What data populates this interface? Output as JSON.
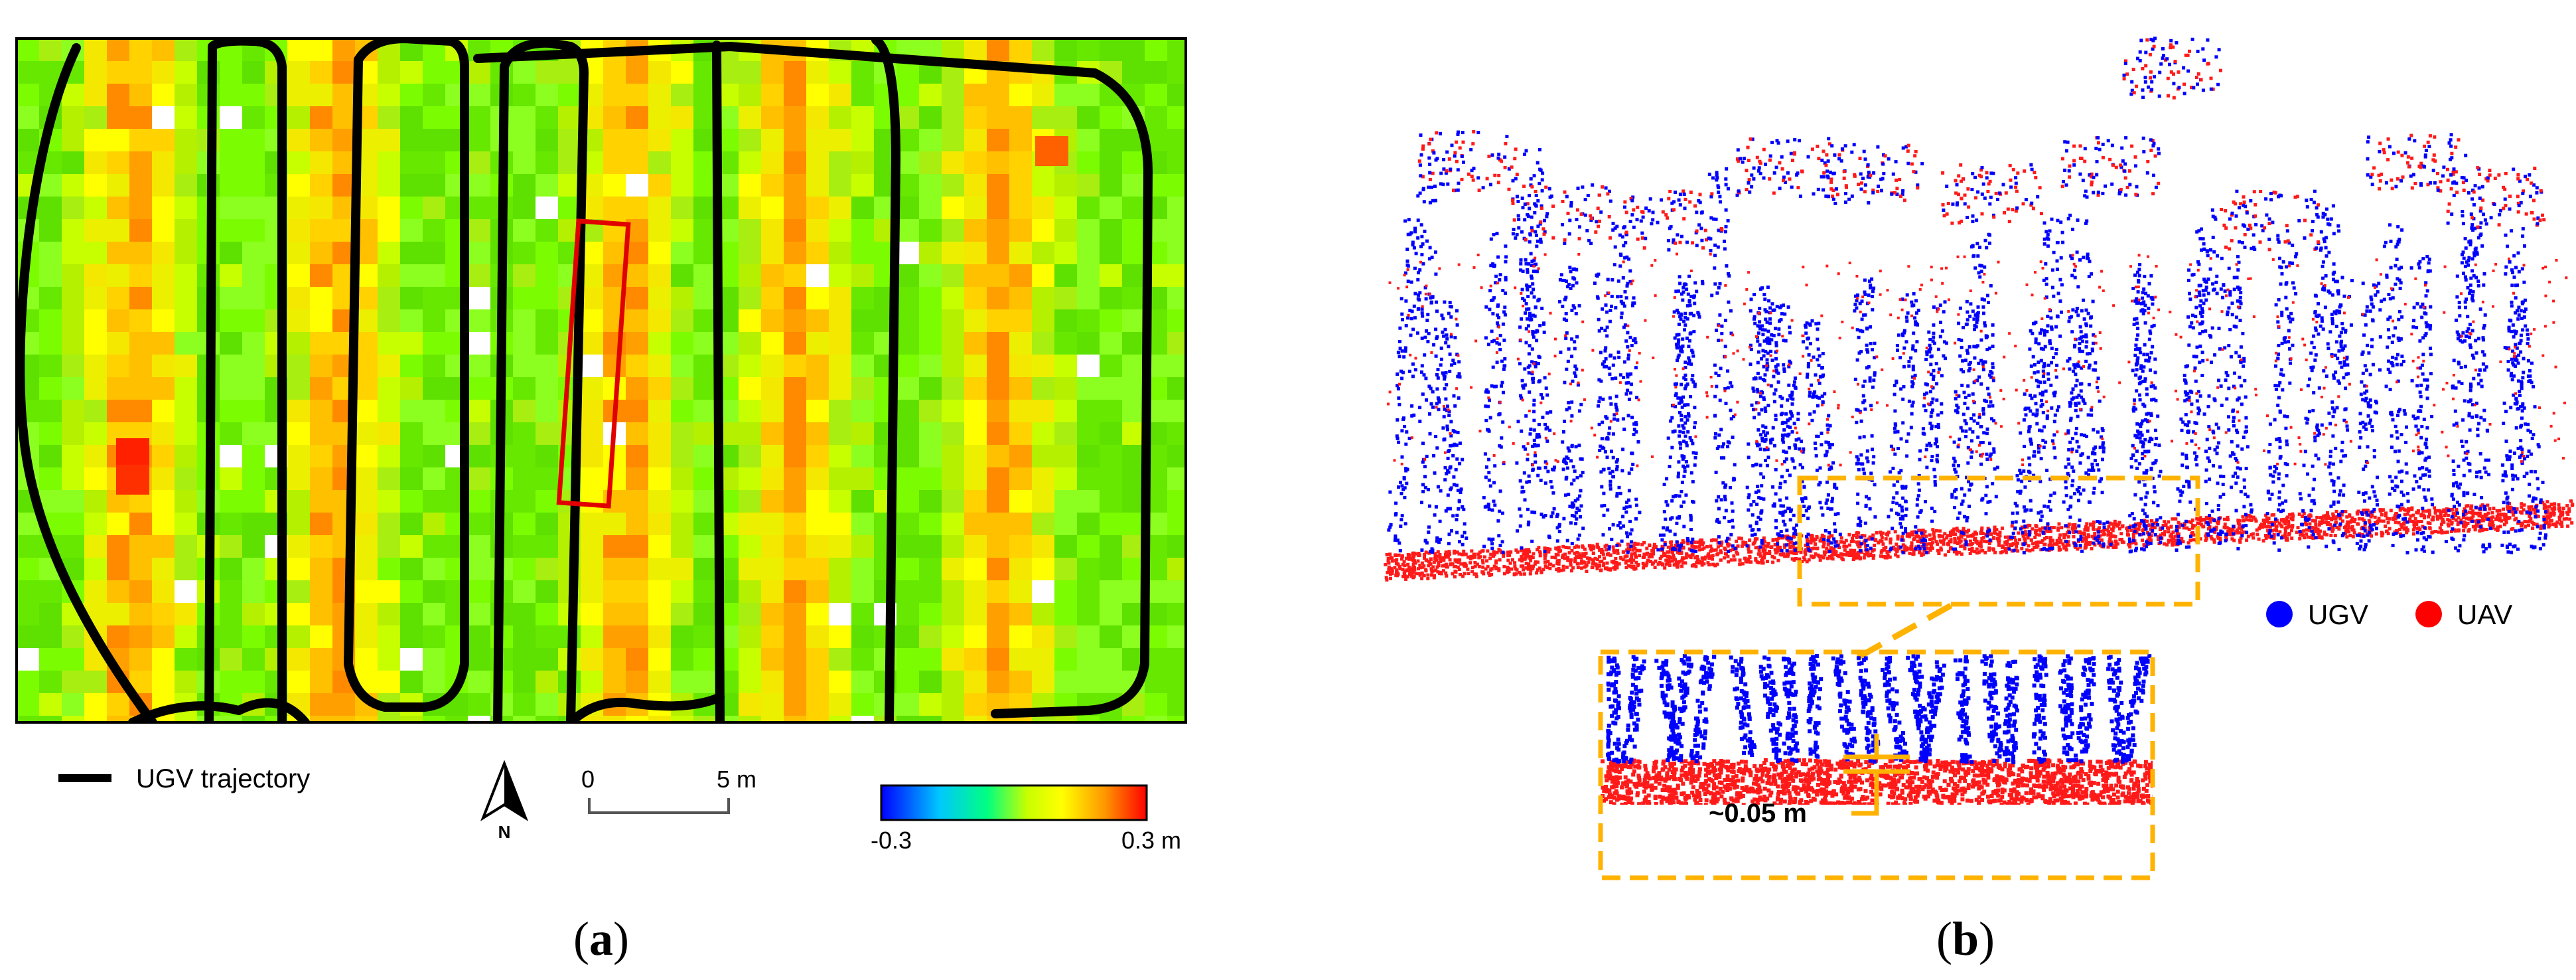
{
  "panel_a": {
    "label_open": "(",
    "label_letter": "a",
    "label_close": ")",
    "legend_trajectory_label": "UGV trajectory",
    "north_arrow_label": "N",
    "scale_bar": {
      "start_label": "0",
      "end_label": "5 m"
    },
    "colorbar": {
      "min_label": "-0.3",
      "max_label": "0.3 m",
      "colors": [
        "#0000ff",
        "#00c8ff",
        "#00ff80",
        "#c8ff00",
        "#ffff00",
        "#ff9900",
        "#ff0000"
      ]
    },
    "colors": {
      "trajectory": "#000000",
      "highlight_box": "#e00000",
      "background": "#7cfc00"
    }
  },
  "panel_b": {
    "label_open": "(",
    "label_letter": "b",
    "label_close": ")",
    "legend": [
      {
        "label": "UGV",
        "color": "#0000ff"
      },
      {
        "label": "UAV",
        "color": "#ff0000"
      }
    ],
    "inset_annotation": "~0.05 m",
    "colors": {
      "zoom_box": "#ffb300"
    }
  }
}
